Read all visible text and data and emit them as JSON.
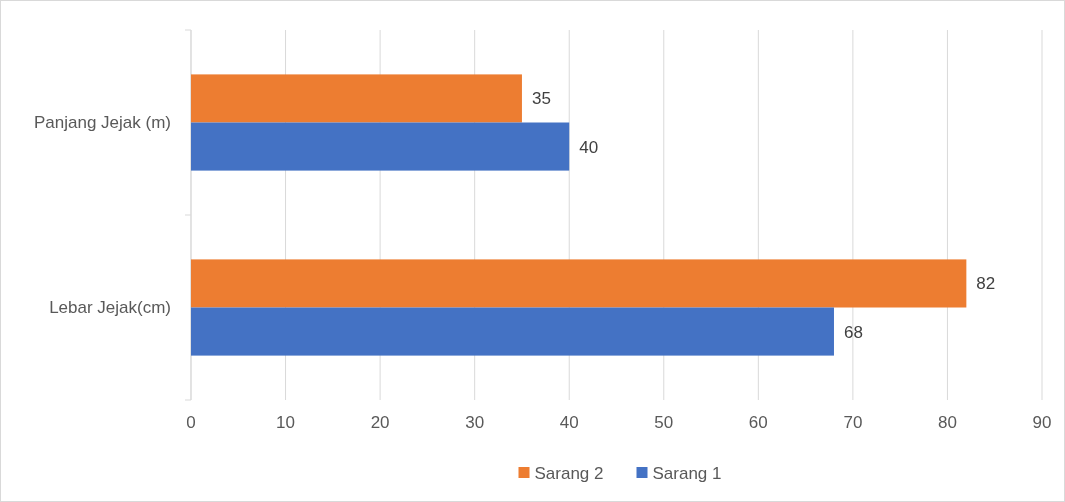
{
  "chart_data": {
    "type": "bar",
    "orientation": "horizontal",
    "categories": [
      "Panjang Jejak (m)",
      "Lebar Jejak(cm)"
    ],
    "series": [
      {
        "name": "Sarang 2",
        "color": "#ed7d31",
        "values": [
          35,
          82
        ]
      },
      {
        "name": "Sarang 1",
        "color": "#4472c4",
        "values": [
          40,
          68
        ]
      }
    ],
    "xlim": [
      0,
      90
    ],
    "xticks": [
      0,
      10,
      20,
      30,
      40,
      50,
      60,
      70,
      80,
      90
    ],
    "grid": "x",
    "data_labels": true,
    "legend": "bottom"
  }
}
